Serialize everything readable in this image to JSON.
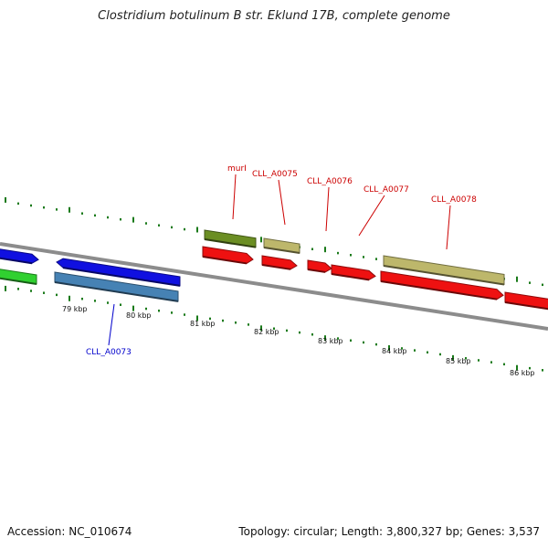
{
  "header": {
    "title": "Clostridium botulinum B str. Eklund 17B, complete genome"
  },
  "footer": {
    "accession": "Accession: NC_010674",
    "topology": "Topology: circular; Length: 3,800,327 bp; Genes: 3,537"
  },
  "colors": {
    "backbone": "#8c8c8c",
    "tick": "#1a7a1a",
    "label_red": "#cc0000",
    "label_blue": "#0000cc"
  },
  "scale": {
    "tick_labels": [
      "79 kbp",
      "80 kbp",
      "81 kbp",
      "82 kbp",
      "83 kbp",
      "84 kbp",
      "85 kbp",
      "86 kbp"
    ]
  },
  "genes": [
    {
      "name": "",
      "track": "upper-cds",
      "color": "#1010e0"
    },
    {
      "name": "",
      "track": "lower-cds",
      "color": "#1010e0"
    },
    {
      "name": "",
      "track": "upper-feature",
      "color": "#30d030"
    },
    {
      "name": "CLL_A0073",
      "track": "lower-feature",
      "color": "#4682b4"
    },
    {
      "name": "murI",
      "track": "upper-feature",
      "color": "#6b8e23"
    },
    {
      "name": "",
      "track": "upper-cds",
      "color": "#ee1111"
    },
    {
      "name": "CLL_A0075",
      "track": "upper-feature",
      "color": "#bdb76b"
    },
    {
      "name": "",
      "track": "upper-cds",
      "color": "#ee1111"
    },
    {
      "name": "CLL_A0076",
      "track": "upper-cds",
      "color": "#ee1111"
    },
    {
      "name": "CLL_A0077",
      "track": "upper-cds",
      "color": "#ee1111"
    },
    {
      "name": "CLL_A0078",
      "track": "upper-feature",
      "color": "#bdb76b"
    },
    {
      "name": "",
      "track": "upper-cds",
      "color": "#ee1111"
    },
    {
      "name": "",
      "track": "upper-cds",
      "color": "#ee1111"
    }
  ]
}
